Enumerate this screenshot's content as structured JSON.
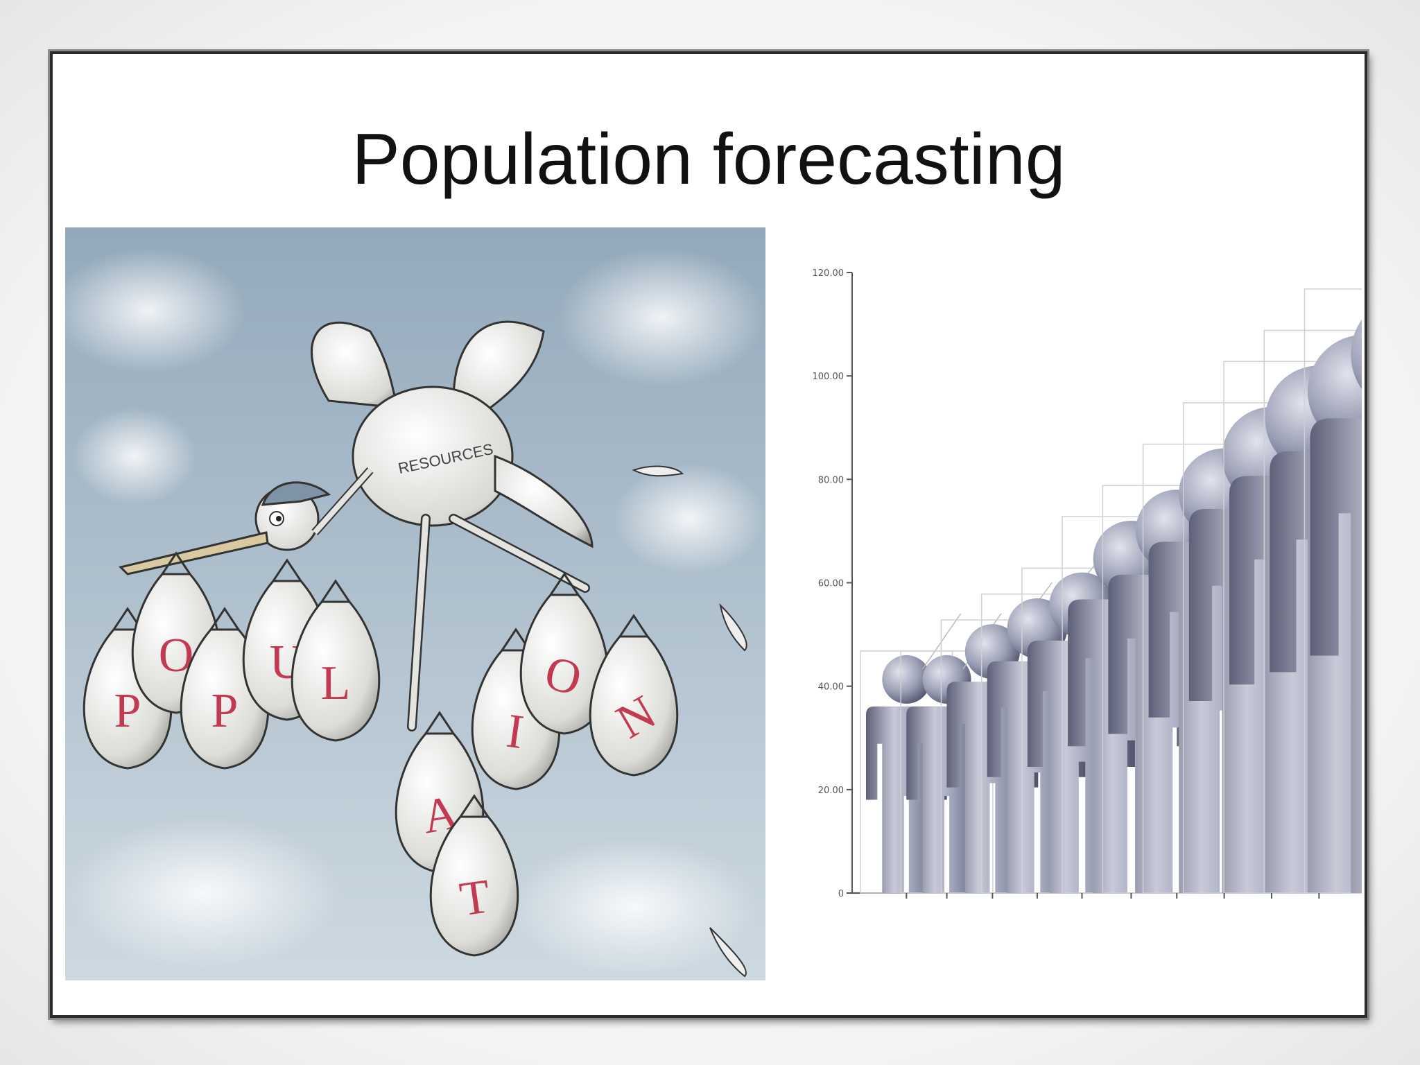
{
  "slide": {
    "title": "Population forecasting"
  },
  "cartoon": {
    "bag_letters": [
      "P",
      "O",
      "P",
      "U",
      "L",
      "A",
      "T",
      "I",
      "O",
      "N"
    ],
    "bird_label": "RESOURCES"
  },
  "chart_data": {
    "type": "bar",
    "ytick_labels": [
      "0",
      "20.00",
      "40.00",
      "60.00",
      "80.00",
      "100.00",
      "120.00"
    ],
    "ylim": [
      0,
      120
    ],
    "values": [
      46,
      46,
      52,
      57,
      62,
      72,
      78,
      86,
      94,
      102,
      108,
      116
    ],
    "colors": {
      "figure": "#8e92a8",
      "figure_light": "#c8cad8",
      "figure_dark": "#5d6078",
      "axis": "#555555"
    }
  },
  "colors": {
    "sky_top": "#9fb3c4",
    "sky_bottom": "#c9d6df",
    "bag": "#e8e8e6",
    "letter": "#c23a52"
  }
}
